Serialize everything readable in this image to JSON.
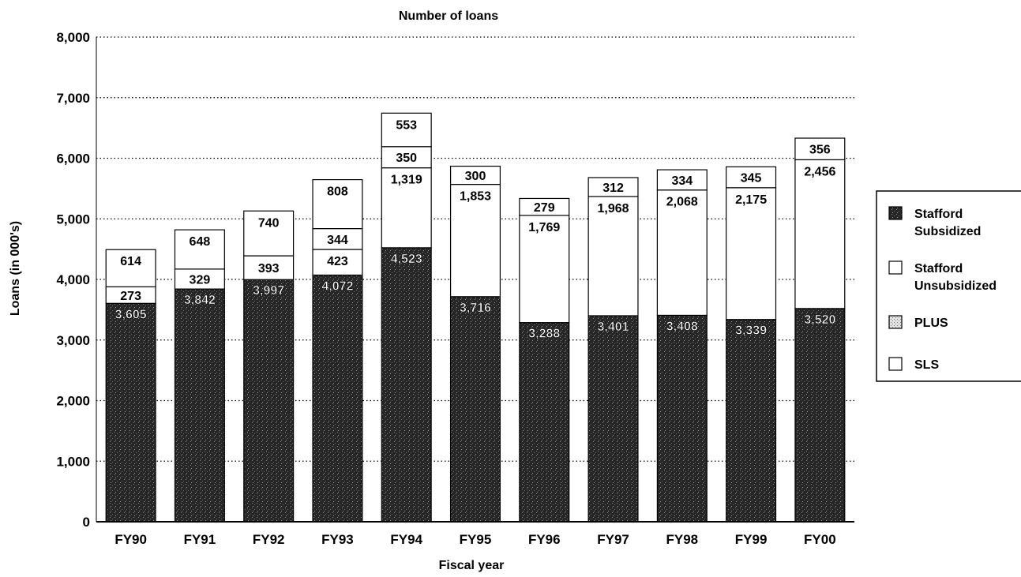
{
  "chart_data": {
    "type": "bar",
    "stacked": true,
    "title": "Number of loans",
    "xlabel": "Fiscal year",
    "ylabel": "Loans (in 000's)",
    "ylim": [
      0,
      8000
    ],
    "yticks": [
      "0",
      "1,000",
      "2,000",
      "3,000",
      "4,000",
      "5,000",
      "6,000",
      "7,000",
      "8,000"
    ],
    "grid": true,
    "legend_position": "right",
    "categories": [
      "FY90",
      "FY91",
      "FY92",
      "FY93",
      "FY94",
      "FY95",
      "FY96",
      "FY97",
      "FY98",
      "FY99",
      "FY00"
    ],
    "series": [
      {
        "name": "Stafford Subsidized",
        "values": [
          3605,
          3842,
          3997,
          4072,
          4523,
          3716,
          3288,
          3401,
          3408,
          3339,
          3520
        ]
      },
      {
        "name": "Stafford Unsubsidized",
        "values": [
          null,
          null,
          null,
          423,
          1319,
          1853,
          1769,
          1968,
          2068,
          2175,
          2456
        ]
      },
      {
        "name": "PLUS",
        "values": [
          273,
          329,
          393,
          344,
          350,
          300,
          279,
          312,
          334,
          345,
          356
        ]
      },
      {
        "name": "SLS",
        "values": [
          614,
          648,
          740,
          808,
          553,
          null,
          null,
          null,
          null,
          null,
          null
        ]
      }
    ],
    "data_labels": [
      [
        "3,605",
        "3,842",
        "3,997",
        "4,072",
        "4,523",
        "3,716",
        "3,288",
        "3,401",
        "3,408",
        "3,339",
        "3,520"
      ],
      [
        null,
        null,
        null,
        "423",
        "1,319",
        "1,853",
        "1,769",
        "1,968",
        "2,068",
        "2,175",
        "2,456"
      ],
      [
        "273",
        "329",
        "393",
        "344",
        "350",
        "300",
        "279",
        "312",
        "334",
        "345",
        "356"
      ],
      [
        "614",
        "648",
        "740",
        "808",
        "553",
        null,
        null,
        null,
        null,
        null,
        null
      ]
    ],
    "colors": {
      "Stafford Subsidized": "#2b2b2b",
      "Stafford Unsubsidized": "#ffffff",
      "PLUS": "#d6d6d6",
      "SLS": "#ffffff"
    }
  }
}
